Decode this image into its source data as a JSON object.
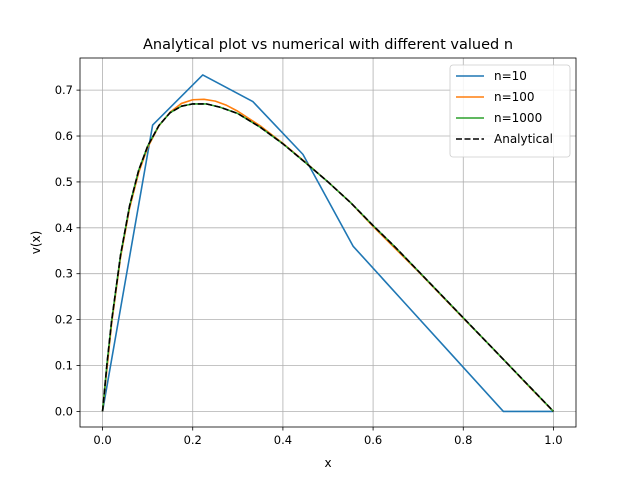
{
  "chart_data": {
    "type": "line",
    "title": "Analytical plot vs numerical with different valued n",
    "xlabel": "x",
    "ylabel": "v(x)",
    "xlim": [
      -0.05,
      1.05
    ],
    "ylim": [
      -0.034,
      0.77
    ],
    "xticks": [
      0.0,
      0.2,
      0.4,
      0.6,
      0.8,
      1.0
    ],
    "xtick_labels": [
      "0.0",
      "0.2",
      "0.4",
      "0.6",
      "0.8",
      "1.0"
    ],
    "yticks": [
      0.0,
      0.1,
      0.2,
      0.3,
      0.4,
      0.5,
      0.6,
      0.7
    ],
    "ytick_labels": [
      "0.0",
      "0.1",
      "0.2",
      "0.3",
      "0.4",
      "0.5",
      "0.6",
      "0.7"
    ],
    "grid": true,
    "legend_position": "top-right",
    "series": [
      {
        "name": "n=10",
        "color": "#1f77b4",
        "dash": "solid",
        "x": [
          0.0,
          0.1111,
          0.2222,
          0.3333,
          0.4444,
          0.5556,
          0.6667,
          0.7778,
          0.8889,
          1.0
        ],
        "y": [
          0.0,
          0.624,
          0.733,
          0.675,
          0.56,
          0.36,
          0.24,
          0.12,
          0.0,
          0.0
        ]
      },
      {
        "name": "n=100",
        "color": "#ff7f0e",
        "dash": "solid",
        "x": [
          0.0,
          0.02,
          0.04,
          0.06,
          0.08,
          0.1,
          0.125,
          0.15,
          0.175,
          0.2,
          0.225,
          0.25,
          0.275,
          0.3,
          0.35,
          0.4,
          0.45,
          0.5,
          0.55,
          0.6,
          0.65,
          0.7,
          0.75,
          0.8,
          0.85,
          0.9,
          0.95,
          1.0
        ],
        "y": [
          0.0,
          0.19,
          0.336,
          0.443,
          0.52,
          0.575,
          0.622,
          0.652,
          0.671,
          0.679,
          0.68,
          0.676,
          0.667,
          0.654,
          0.622,
          0.584,
          0.543,
          0.5,
          0.455,
          0.403,
          0.354,
          0.305,
          0.254,
          0.203,
          0.153,
          0.102,
          0.05,
          0.0
        ]
      },
      {
        "name": "n=1000",
        "color": "#2ca02c",
        "dash": "solid",
        "x": [
          0.0,
          0.01,
          0.02,
          0.04,
          0.06,
          0.08,
          0.1,
          0.125,
          0.15,
          0.175,
          0.2,
          0.23,
          0.26,
          0.3,
          0.35,
          0.4,
          0.45,
          0.5,
          0.55,
          0.6,
          0.65,
          0.7,
          0.75,
          0.8,
          0.85,
          0.9,
          0.95,
          1.0
        ],
        "y": [
          0.0,
          0.105,
          0.196,
          0.341,
          0.448,
          0.525,
          0.578,
          0.623,
          0.651,
          0.665,
          0.67,
          0.67,
          0.663,
          0.649,
          0.619,
          0.583,
          0.542,
          0.5,
          0.455,
          0.405,
          0.357,
          0.306,
          0.255,
          0.204,
          0.153,
          0.102,
          0.051,
          0.0
        ]
      },
      {
        "name": "Analytical",
        "color": "#000000",
        "dash": "dashed",
        "x": [
          0.0,
          0.01,
          0.02,
          0.04,
          0.06,
          0.08,
          0.1,
          0.125,
          0.15,
          0.175,
          0.2,
          0.23,
          0.26,
          0.3,
          0.35,
          0.4,
          0.45,
          0.5,
          0.55,
          0.6,
          0.65,
          0.7,
          0.75,
          0.8,
          0.85,
          0.9,
          0.95,
          1.0
        ],
        "y": [
          0.0,
          0.105,
          0.196,
          0.341,
          0.448,
          0.525,
          0.578,
          0.623,
          0.651,
          0.665,
          0.67,
          0.67,
          0.663,
          0.649,
          0.619,
          0.583,
          0.542,
          0.5,
          0.455,
          0.405,
          0.357,
          0.306,
          0.255,
          0.204,
          0.153,
          0.102,
          0.051,
          0.0
        ]
      }
    ]
  }
}
